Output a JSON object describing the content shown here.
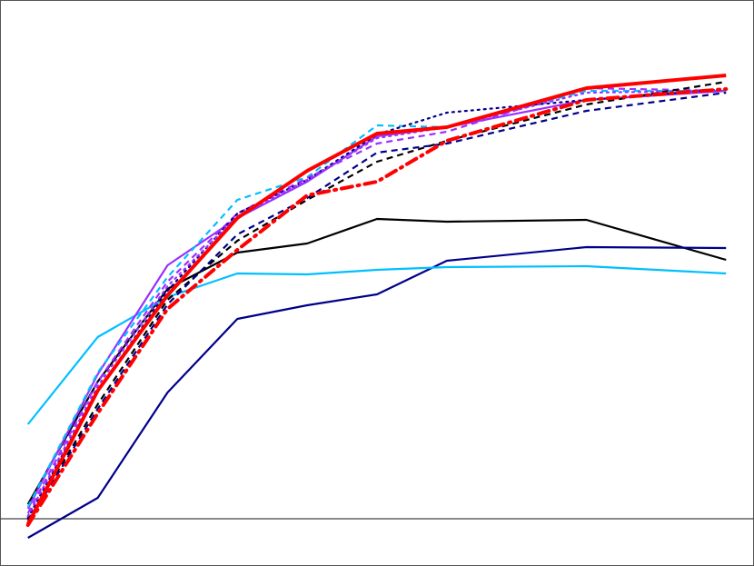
{
  "chart_data": {
    "type": "line",
    "title": "",
    "xlabel": "",
    "ylabel": "",
    "xlim": [
      -0.4,
      10.4
    ],
    "ylim": [
      -0.52,
      5.71
    ],
    "grid": false,
    "legend": "none",
    "zero_line": true,
    "x": [
      0,
      1,
      2,
      3,
      4,
      5,
      6,
      8,
      10
    ],
    "series": [
      {
        "color": "#000000",
        "style": "solid",
        "width": 2.2,
        "values": [
          0.16,
          1.51,
          2.53,
          2.93,
          3.03,
          3.3,
          3.27,
          3.29,
          2.85
        ]
      },
      {
        "color": "#00008b",
        "style": "solid",
        "width": 2.2,
        "values": [
          -0.21,
          0.23,
          1.39,
          2.2,
          2.35,
          2.47,
          2.84,
          2.99,
          2.98
        ]
      },
      {
        "color": "#00bfff",
        "style": "solid",
        "width": 2.2,
        "values": [
          1.04,
          2.0,
          2.44,
          2.7,
          2.69,
          2.74,
          2.77,
          2.78,
          2.7
        ]
      },
      {
        "color": "#9b30ff",
        "style": "solid",
        "width": 2.2,
        "values": [
          0.11,
          1.59,
          2.79,
          3.31,
          3.71,
          4.21,
          4.31,
          4.61,
          4.71
        ]
      },
      {
        "color": "#00bfff",
        "style": "dashed",
        "width": 2.2,
        "values": [
          0.13,
          1.61,
          2.66,
          3.51,
          3.76,
          4.33,
          4.31,
          4.71,
          4.71
        ]
      },
      {
        "color": "#9b30ff",
        "style": "dashed",
        "width": 2.2,
        "values": [
          0.06,
          1.51,
          2.61,
          3.36,
          3.75,
          4.13,
          4.26,
          4.74,
          4.71
        ]
      },
      {
        "color": "#00008b",
        "style": "dotted",
        "width": 2.2,
        "values": [
          0.01,
          1.41,
          2.51,
          3.36,
          3.73,
          4.23,
          4.47,
          4.61,
          4.73
        ]
      },
      {
        "color": "#9b30ff",
        "style": "dotted",
        "width": 2.2,
        "values": [
          0.03,
          1.46,
          2.56,
          3.33,
          3.73,
          4.19,
          4.31,
          4.69,
          4.71
        ]
      },
      {
        "color": "#000000",
        "style": "dashed",
        "width": 2.2,
        "values": [
          -0.02,
          1.26,
          2.41,
          3.06,
          3.51,
          3.93,
          4.16,
          4.56,
          4.81
        ]
      },
      {
        "color": "#00008b",
        "style": "dashed",
        "width": 2.2,
        "values": [
          -0.04,
          1.21,
          2.36,
          3.13,
          3.53,
          4.03,
          4.13,
          4.49,
          4.69
        ]
      },
      {
        "color": "#ff0000",
        "style": "dashdot",
        "width": 4,
        "values": [
          -0.07,
          1.16,
          2.31,
          2.96,
          3.56,
          3.71,
          4.16,
          4.61,
          4.73
        ]
      },
      {
        "color": "#ff0000",
        "style": "solid",
        "width": 4,
        "values": [
          -0.06,
          1.41,
          2.46,
          3.31,
          3.83,
          4.24,
          4.31,
          4.74,
          4.88
        ]
      }
    ]
  }
}
